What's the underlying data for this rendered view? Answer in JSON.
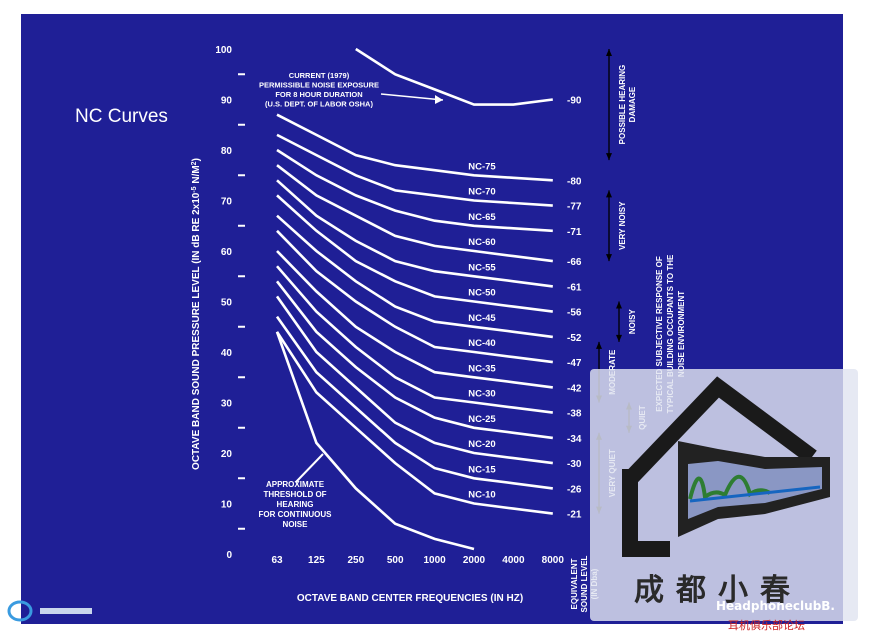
{
  "side_title": "NC Curves",
  "chart_data": {
    "type": "line",
    "ylabel": "OCTAVE BAND SOUND PRESSURE LEVEL (IN dB RE 2x10",
    "ylabel_sup": "-5",
    "ylabel_unit": " N/M",
    "ylabel_unit_sup": "2",
    "ylabel_close": ")",
    "xlabel": "OCTAVE BAND CENTER FREQUENCIES (IN HZ)",
    "categories": [
      "63",
      "125",
      "250",
      "500",
      "1000",
      "2000",
      "4000",
      "8000"
    ],
    "ylim": [
      0,
      100
    ],
    "yticks": [
      0,
      10,
      20,
      30,
      40,
      50,
      60,
      70,
      80,
      90,
      100
    ],
    "series": [
      {
        "name": "NC-75",
        "values": [
          87,
          83,
          79,
          77,
          76,
          75,
          74.5,
          74
        ],
        "equiv": "-80"
      },
      {
        "name": "NC-70",
        "values": [
          83,
          79,
          75,
          72,
          71,
          70,
          69.5,
          69
        ],
        "equiv": "-77"
      },
      {
        "name": "NC-65",
        "values": [
          80,
          75,
          71,
          68,
          66,
          65,
          64.5,
          64
        ],
        "equiv": "-71"
      },
      {
        "name": "NC-60",
        "values": [
          77,
          71,
          67,
          63,
          61,
          60,
          59,
          58
        ],
        "equiv": "-66"
      },
      {
        "name": "NC-55",
        "values": [
          74,
          67,
          62,
          58,
          56,
          55,
          54,
          53
        ],
        "equiv": "-61"
      },
      {
        "name": "NC-50",
        "values": [
          71,
          64,
          58,
          54,
          51,
          50,
          49,
          48
        ],
        "equiv": "-56"
      },
      {
        "name": "NC-45",
        "values": [
          67,
          60,
          54,
          49,
          46,
          45,
          44,
          43
        ],
        "equiv": "-52"
      },
      {
        "name": "NC-40",
        "values": [
          64,
          56,
          50,
          45,
          41,
          40,
          39,
          38
        ],
        "equiv": "-47"
      },
      {
        "name": "NC-35",
        "values": [
          60,
          52,
          45,
          40,
          36,
          35,
          34,
          33
        ],
        "equiv": "-42"
      },
      {
        "name": "NC-30",
        "values": [
          57,
          48,
          41,
          35,
          31,
          30,
          29,
          28
        ],
        "equiv": "-38"
      },
      {
        "name": "NC-25",
        "values": [
          54,
          44,
          37,
          31,
          27,
          25,
          24,
          23
        ],
        "equiv": "-34"
      },
      {
        "name": "NC-20",
        "values": [
          51,
          40,
          33,
          26,
          22,
          20,
          19,
          18
        ],
        "equiv": "-30"
      },
      {
        "name": "NC-15",
        "values": [
          47,
          36,
          29,
          22,
          17,
          15,
          14,
          13
        ],
        "equiv": "-26"
      },
      {
        "name": "NC-10",
        "values": [
          44,
          32,
          25,
          18,
          12,
          10,
          9,
          8
        ],
        "equiv": "-21"
      }
    ],
    "threshold": {
      "label": [
        "APPROXIMATE",
        "THRESHOLD OF",
        "HEARING",
        "FOR CONTINUOUS",
        "NOISE"
      ],
      "values": [
        44,
        22,
        13,
        6,
        3,
        1,
        null,
        null
      ]
    },
    "osha": {
      "label": [
        "CURRENT (1979)",
        "PERMISSIBLE NOISE EXPOSURE",
        "FOR 8 HOUR DURATION",
        "(U.S. DEPT. OF LABOR OSHA)"
      ],
      "values": [
        null,
        null,
        100,
        95,
        92,
        89,
        89,
        90
      ],
      "equiv": "-90"
    },
    "equiv_label": [
      "EQUIVALENT",
      "SOUND LEVEL",
      "(IN Dba)"
    ],
    "bands": [
      {
        "label": "POSSIBLE HEARING DAMAGE",
        "lines": [
          "POSSIBLE HEARING",
          "DAMAGE"
        ],
        "from": 78,
        "to": 100
      },
      {
        "label": "VERY NOISY",
        "lines": [
          "VERY NOISY"
        ],
        "from": 58,
        "to": 72
      },
      {
        "label": "NOISY",
        "lines": [
          "NOISY"
        ],
        "from": 42,
        "to": 50
      },
      {
        "label": "MODERATE",
        "lines": [
          "MODERATE"
        ],
        "from": 30,
        "to": 42
      },
      {
        "label": "QUIET",
        "lines": [
          "QUIET"
        ],
        "from": 24,
        "to": 30
      },
      {
        "label": "VERY QUIET",
        "lines": [
          "VERY QUIET"
        ],
        "from": 8,
        "to": 24
      }
    ],
    "response_label": [
      "EXPECTED SUBJECTIVE RESPONSE OF",
      "TYPICAL BUILDING OCCUPANTS TO THE",
      "NOISE ENVIRONMENT"
    ]
  },
  "watermark": {
    "chinese": "成都小春",
    "english": "HeadphoneclubB.",
    "chinese_small": "耳机俱乐部论坛"
  },
  "colors": {
    "background": "#1f1f96",
    "lines": "#ffffff"
  }
}
